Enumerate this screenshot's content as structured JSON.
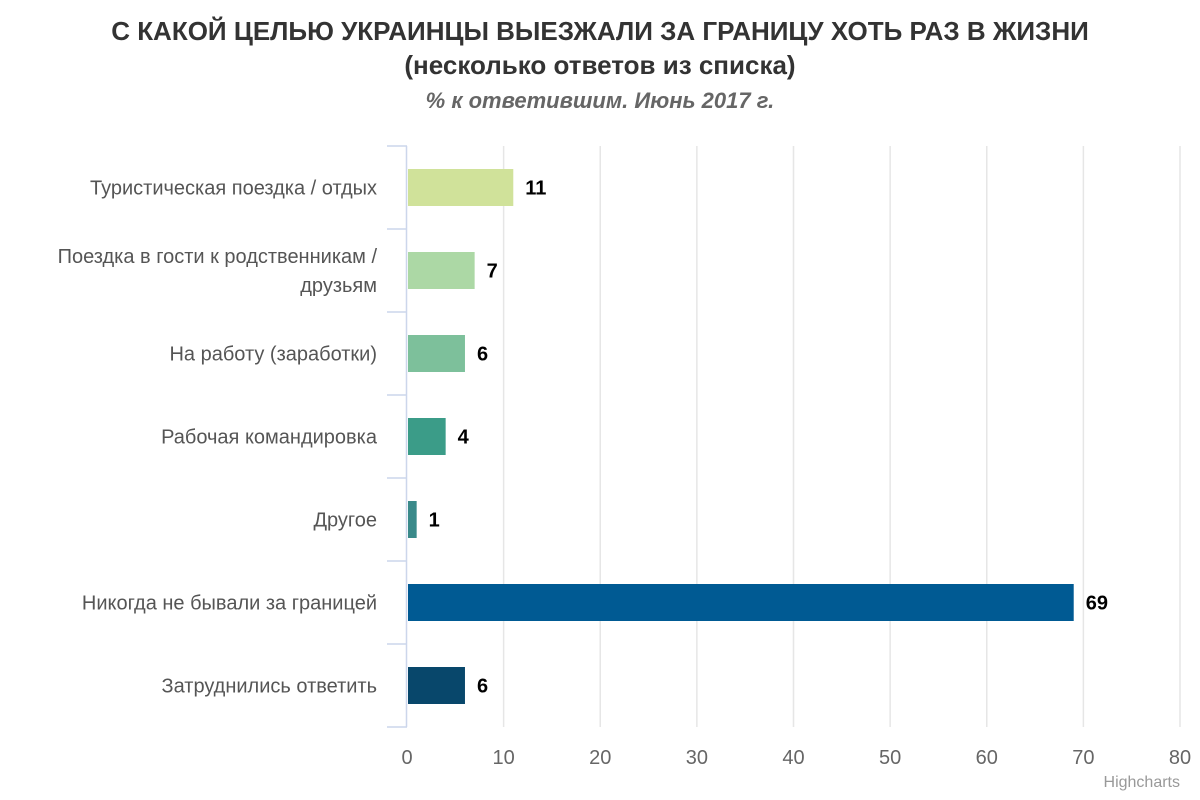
{
  "chart_data": {
    "type": "bar",
    "orientation": "horizontal",
    "title_line1": "С КАКОЙ ЦЕЛЬЮ УКРАИНЦЫ ВЫЕЗЖАЛИ ЗА ГРАНИЦУ ХОТЬ РАЗ В ЖИЗНИ",
    "title_line2": "(несколько ответов из списка)",
    "subtitle": "% к ответившим. Июнь 2017 г.",
    "categories": [
      [
        "Туристическая поездка / отдых"
      ],
      [
        "Поездка в гости к родственникам /",
        "друзьям"
      ],
      [
        "На работу (заработки)"
      ],
      [
        "Рабочая командировка"
      ],
      [
        "Другое"
      ],
      [
        "Никогда не бывали за границей"
      ],
      [
        "Затруднились ответить"
      ]
    ],
    "values": [
      11,
      7,
      6,
      4,
      1,
      69,
      6
    ],
    "colors": [
      "#d0e29a",
      "#acd8a5",
      "#7dc09b",
      "#3b9c88",
      "#3a8a8a",
      "#005a93",
      "#08476b"
    ],
    "xlim": [
      0,
      80
    ],
    "xticks": [
      0,
      10,
      20,
      30,
      40,
      50,
      60,
      70,
      80
    ],
    "grid": true,
    "gridColor": "#e6e6e6",
    "axisColor": "#ccd6eb",
    "credits": "Highcharts"
  }
}
